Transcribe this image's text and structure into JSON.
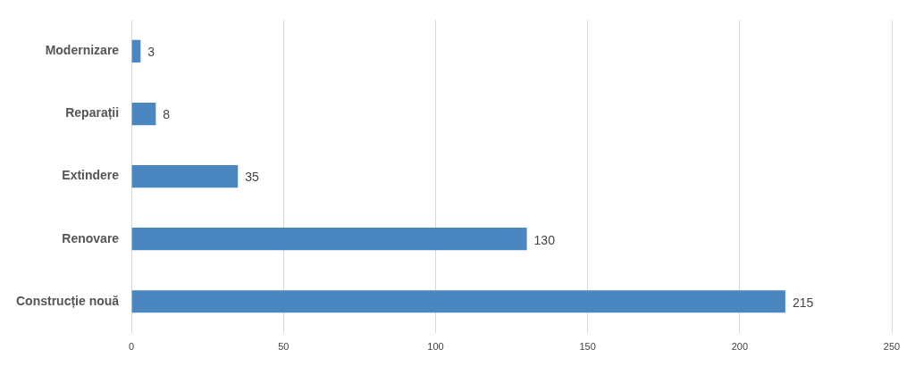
{
  "chart_data": {
    "type": "bar",
    "orientation": "horizontal",
    "categories": [
      "Modernizare",
      "Reparații",
      "Extindere",
      "Renovare",
      "Construcție nouă"
    ],
    "values": [
      3,
      8,
      35,
      130,
      215
    ],
    "color": "#4a86c0",
    "xlim": [
      0,
      250
    ],
    "xticks": [
      0,
      50,
      100,
      150,
      200,
      250
    ],
    "grid": "x",
    "data_labels": true,
    "legend": false
  }
}
